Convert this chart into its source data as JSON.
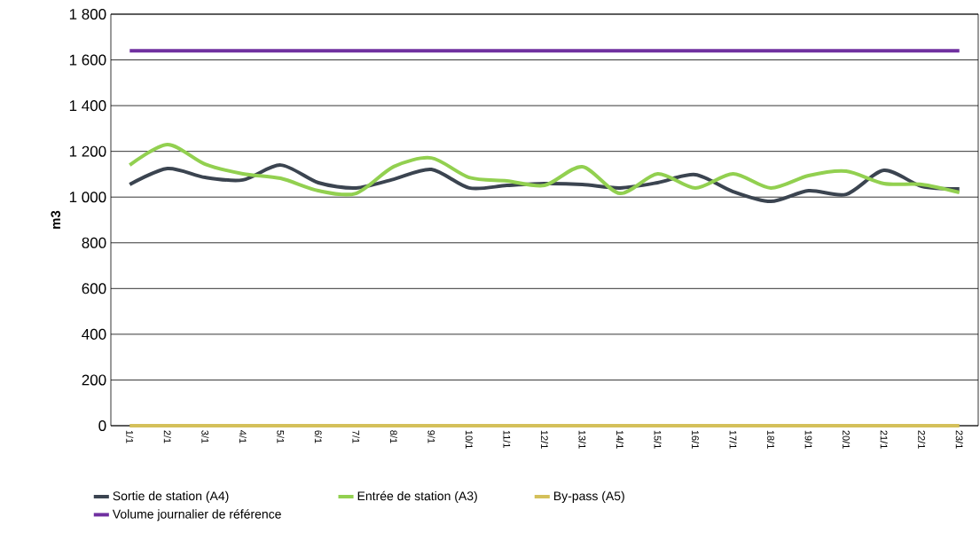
{
  "chart_data": {
    "type": "line",
    "ylabel": "m3",
    "categories": [
      "1/1",
      "2/1",
      "3/1",
      "4/1",
      "5/1",
      "6/1",
      "7/1",
      "8/1",
      "9/1",
      "10/1",
      "11/1",
      "12/1",
      "13/1",
      "14/1",
      "15/1",
      "16/1",
      "17/1",
      "18/1",
      "19/1",
      "20/1",
      "21/1",
      "22/1",
      "23/1"
    ],
    "series": [
      {
        "name": "Sortie de station (A4)",
        "color": "#3b4450",
        "values": [
          1055,
          1125,
          1086,
          1075,
          1140,
          1063,
          1040,
          1078,
          1121,
          1040,
          1051,
          1059,
          1055,
          1040,
          1063,
          1098,
          1024,
          981,
          1028,
          1012,
          1117,
          1047,
          1036
        ]
      },
      {
        "name": "Entrée de station (A3)",
        "color": "#92d050",
        "values": [
          1140,
          1230,
          1144,
          1102,
          1082,
          1028,
          1016,
          1133,
          1171,
          1086,
          1071,
          1051,
          1133,
          1016,
          1102,
          1040,
          1102,
          1040,
          1094,
          1113,
          1059,
          1055,
          1020
        ]
      },
      {
        "name": "By-pass (A5)",
        "color": "#d4c05a",
        "values": [
          0,
          0,
          0,
          0,
          0,
          0,
          0,
          0,
          0,
          0,
          0,
          0,
          0,
          0,
          0,
          0,
          0,
          0,
          0,
          0,
          0,
          0,
          0
        ]
      },
      {
        "name": "Volume journalier de référence",
        "color": "#7030a0",
        "values": [
          1640,
          1640,
          1640,
          1640,
          1640,
          1640,
          1640,
          1640,
          1640,
          1640,
          1640,
          1640,
          1640,
          1640,
          1640,
          1640,
          1640,
          1640,
          1640,
          1640,
          1640,
          1640,
          1640
        ]
      }
    ],
    "ylim": [
      0,
      1800
    ],
    "yticks": [
      0,
      200,
      400,
      600,
      800,
      {
        "value": 1000,
        "label": "1 000"
      },
      {
        "value": 1200,
        "label": "1 200"
      },
      {
        "value": 1400,
        "label": "1 400"
      },
      {
        "value": 1600,
        "label": "1 600"
      },
      {
        "value": 1800,
        "label": "1 800"
      }
    ],
    "grid": "y",
    "legend": "bottom",
    "marker": "none",
    "line_style": "solid"
  }
}
